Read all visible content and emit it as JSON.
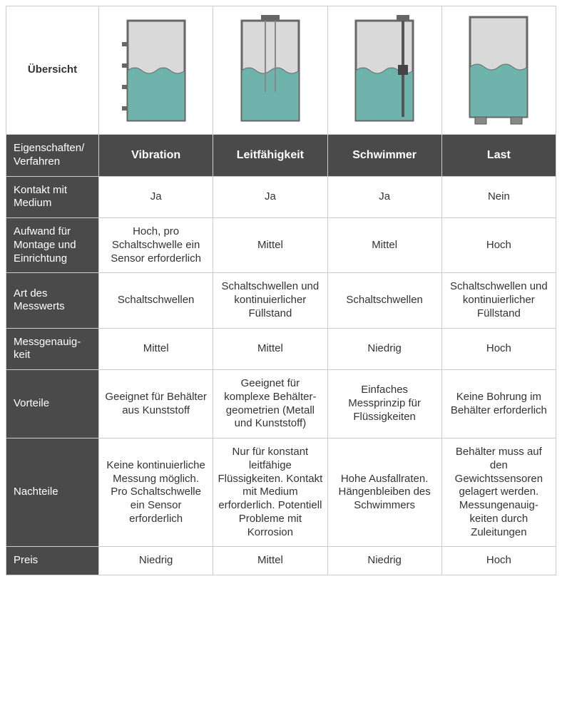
{
  "table": {
    "overview_label": "Übersicht",
    "header_label": "Eigenschaften/ Verfahren",
    "columns": [
      "Vibration",
      "Leitfähigkeit",
      "Schwimmer",
      "Last"
    ],
    "rows": [
      {
        "label": "Kontakt mit Medium",
        "cells": [
          "Ja",
          "Ja",
          "Ja",
          "Nein"
        ]
      },
      {
        "label": "Aufwand für Montage  und Einrichtung",
        "cells": [
          "Hoch, pro Schaltschwelle ein Sensor erforderlich",
          "Mittel",
          "Mittel",
          "Hoch"
        ]
      },
      {
        "label": "Art des Messwerts",
        "cells": [
          "Schaltschwellen",
          "Schaltschwellen und kontinuierlicher Füllstand",
          "Schaltschwellen",
          "Schaltschwellen und kontinuierlicher Füllstand"
        ]
      },
      {
        "label": "Messgenauig-keit",
        "cells": [
          "Mittel",
          "Mittel",
          "Niedrig",
          "Hoch"
        ]
      },
      {
        "label": "Vorteile",
        "cells": [
          "Geeignet für Behälter aus Kunststoff",
          "Geeignet für komplexe Behälter-geometrien (Metall und Kunststoff)",
          "Einfaches Messprinzip für Flüssigkeiten",
          "Keine Bohrung im Behälter erforderlich"
        ]
      },
      {
        "label": "Nachteile",
        "cells": [
          "Keine kontinuierliche Messung möglich. Pro Schaltschwelle ein Sensor erforderlich",
          "Nur für konstant leitfähige Flüssigkeiten. Kontakt mit Medium erforderlich. Potentiell Probleme mit Korrosion",
          "Hohe Ausfallraten. Hängenbleiben des Schwimmers",
          "Behälter muss auf den Gewichtssensoren gelagert werden. Messungenauig-keiten durch Zuleitungen"
        ]
      },
      {
        "label": "Preis",
        "cells": [
          "Niedrig",
          "Mittel",
          "Niedrig",
          "Hoch"
        ]
      }
    ]
  },
  "colors": {
    "tank_body": "#d9d9d9",
    "tank_outline": "#666666",
    "liquid": "#6fb4ac",
    "header_bg": "#4a4a4a",
    "border": "#cccccc",
    "text": "#333333",
    "header_text": "#ffffff"
  }
}
